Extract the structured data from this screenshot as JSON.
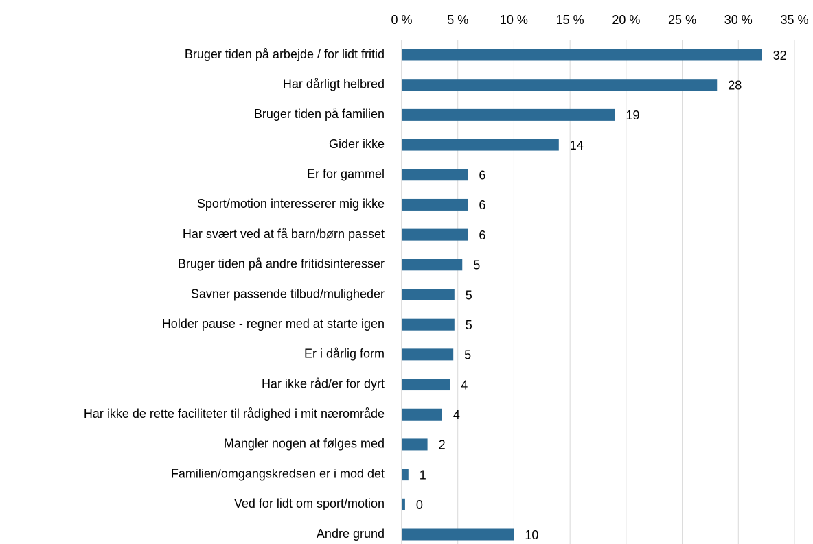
{
  "chart_data": {
    "type": "hbar",
    "categories": [
      "Bruger tiden på arbejde / for lidt fritid",
      "Har dårligt helbred",
      "Bruger tiden på familien",
      "Gider ikke",
      "Er for gammel",
      "Sport/motion interesserer mig ikke",
      "Har svært ved at få barn/børn passet",
      "Bruger  tiden på andre fritidsinteresser",
      "Savner passende tilbud/muligheder",
      "Holder pause - regner med at starte igen",
      "Er i dårlig form",
      "Har ikke råd/er for dyrt",
      "Har ikke de rette faciliteter til rådighed i mit nærområde",
      "Mangler nogen at følges med",
      "Familien/omgangskredsen er i mod det",
      "Ved for lidt om sport/motion",
      "Andre grund"
    ],
    "values": [
      32.1,
      28.1,
      19.0,
      14.0,
      5.9,
      5.9,
      5.9,
      5.4,
      4.7,
      4.7,
      4.6,
      4.3,
      3.6,
      2.3,
      0.6,
      0.3,
      10.0
    ],
    "value_labels": [
      "32",
      "28",
      "19",
      "14",
      "6",
      "6",
      "6",
      "5",
      "5",
      "5",
      "5",
      "4",
      "4",
      "2",
      "1",
      "0",
      "10"
    ],
    "color": "#2c6b95",
    "xlim": [
      0,
      35
    ],
    "xticks": [
      {
        "value": 0,
        "label": "0 %"
      },
      {
        "value": 5,
        "label": "5 %"
      },
      {
        "value": 10,
        "label": "10 %"
      },
      {
        "value": 15,
        "label": "15 %"
      },
      {
        "value": 20,
        "label": "20 %"
      },
      {
        "value": 25,
        "label": "25 %"
      },
      {
        "value": 30,
        "label": "30 %"
      },
      {
        "value": 35,
        "label": "35 %"
      }
    ],
    "grid": true
  }
}
